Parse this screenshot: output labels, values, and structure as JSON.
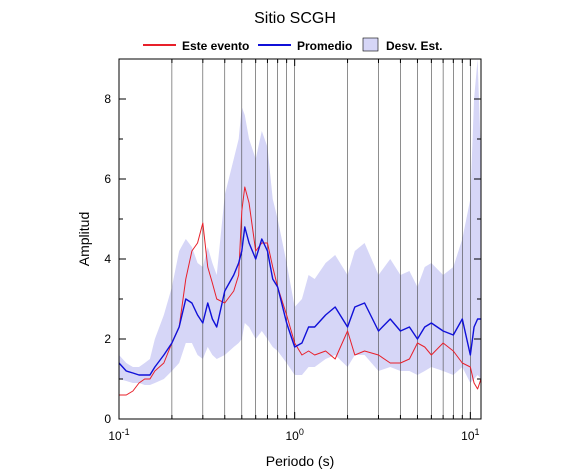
{
  "chart_data": {
    "type": "line",
    "title": "Sitio SCGH",
    "xlabel": "Periodo (s)",
    "ylabel": "Amplitud",
    "x_scale": "log",
    "xlim": [
      0.1,
      11.5
    ],
    "ylim": [
      0,
      9
    ],
    "x_ticks": [
      {
        "value": 0.1,
        "base": "10",
        "exp": "-1"
      },
      {
        "value": 1,
        "base": "10",
        "exp": "0"
      },
      {
        "value": 10,
        "base": "10",
        "exp": "1"
      }
    ],
    "y_ticks": [
      0,
      2,
      4,
      6,
      8
    ],
    "grid": "vertical minor/major gridlines on log x axis",
    "legend_position": "top",
    "legend": [
      {
        "label": "Este evento",
        "kind": "line",
        "color": "#e8202a"
      },
      {
        "label": "Promedio",
        "kind": "line",
        "color": "#1010d8"
      },
      {
        "label": "Desv. Est.",
        "kind": "band",
        "color": "#d6d6f7"
      }
    ],
    "series": [
      {
        "name": "Este evento",
        "color": "#e8202a",
        "x": [
          0.1,
          0.11,
          0.12,
          0.13,
          0.14,
          0.15,
          0.16,
          0.18,
          0.2,
          0.22,
          0.24,
          0.26,
          0.28,
          0.3,
          0.32,
          0.34,
          0.36,
          0.4,
          0.45,
          0.48,
          0.5,
          0.52,
          0.55,
          0.6,
          0.65,
          0.7,
          0.75,
          0.8,
          0.9,
          1.0,
          1.1,
          1.2,
          1.3,
          1.5,
          1.7,
          2.0,
          2.2,
          2.5,
          3.0,
          3.5,
          4.0,
          4.5,
          5.0,
          5.5,
          6.0,
          7.0,
          8.0,
          9.0,
          10.0,
          10.5,
          11.0,
          11.5
        ],
        "y": [
          0.6,
          0.6,
          0.7,
          0.9,
          1.0,
          1.0,
          1.2,
          1.4,
          1.9,
          2.3,
          3.5,
          4.2,
          4.4,
          4.9,
          3.8,
          3.4,
          3.0,
          2.9,
          3.2,
          3.6,
          5.2,
          5.8,
          5.4,
          4.2,
          4.4,
          4.4,
          3.8,
          3.3,
          2.6,
          1.9,
          1.6,
          1.7,
          1.6,
          1.7,
          1.5,
          2.2,
          1.6,
          1.7,
          1.6,
          1.4,
          1.4,
          1.5,
          1.9,
          1.8,
          1.6,
          1.9,
          1.7,
          1.4,
          1.3,
          0.9,
          0.75,
          1.0
        ]
      },
      {
        "name": "Promedio",
        "color": "#1010d8",
        "x": [
          0.1,
          0.11,
          0.12,
          0.13,
          0.14,
          0.15,
          0.16,
          0.18,
          0.2,
          0.22,
          0.24,
          0.26,
          0.28,
          0.3,
          0.32,
          0.34,
          0.36,
          0.4,
          0.45,
          0.48,
          0.5,
          0.52,
          0.55,
          0.6,
          0.65,
          0.7,
          0.75,
          0.8,
          0.9,
          1.0,
          1.1,
          1.2,
          1.3,
          1.5,
          1.7,
          2.0,
          2.2,
          2.5,
          3.0,
          3.5,
          4.0,
          4.5,
          5.0,
          5.5,
          6.0,
          7.0,
          8.0,
          9.0,
          10.0,
          10.5,
          11.0,
          11.5
        ],
        "y": [
          1.4,
          1.2,
          1.15,
          1.1,
          1.1,
          1.1,
          1.3,
          1.6,
          1.9,
          2.3,
          3.0,
          2.9,
          2.6,
          2.4,
          2.9,
          2.5,
          2.3,
          3.2,
          3.6,
          3.9,
          4.2,
          4.8,
          4.4,
          4.0,
          4.5,
          4.2,
          3.5,
          3.3,
          2.4,
          1.8,
          1.9,
          2.3,
          2.3,
          2.6,
          2.8,
          2.3,
          2.8,
          2.9,
          2.2,
          2.5,
          2.2,
          2.3,
          2.0,
          2.3,
          2.4,
          2.2,
          2.1,
          2.5,
          1.6,
          2.3,
          2.5,
          2.5
        ]
      }
    ],
    "band": {
      "name": "Desv. Est.",
      "color": "#d6d6f7",
      "x": [
        0.1,
        0.11,
        0.12,
        0.13,
        0.14,
        0.15,
        0.16,
        0.18,
        0.2,
        0.22,
        0.24,
        0.26,
        0.28,
        0.3,
        0.32,
        0.34,
        0.36,
        0.4,
        0.45,
        0.48,
        0.5,
        0.52,
        0.55,
        0.6,
        0.65,
        0.7,
        0.75,
        0.8,
        0.9,
        1.0,
        1.1,
        1.2,
        1.3,
        1.5,
        1.7,
        2.0,
        2.2,
        2.5,
        3.0,
        3.5,
        4.0,
        4.5,
        5.0,
        5.5,
        6.0,
        7.0,
        8.0,
        9.0,
        10.0,
        10.5,
        11.0,
        11.5
      ],
      "upper": [
        1.6,
        1.4,
        1.3,
        1.3,
        1.4,
        1.5,
        2.0,
        2.6,
        3.3,
        4.2,
        4.5,
        4.3,
        3.9,
        3.8,
        4.3,
        3.9,
        3.6,
        5.6,
        6.5,
        7.0,
        7.8,
        7.6,
        7.0,
        6.5,
        7.2,
        6.8,
        5.5,
        5.0,
        3.9,
        2.8,
        3.0,
        3.6,
        3.5,
        3.9,
        4.1,
        3.6,
        4.2,
        4.4,
        3.6,
        4.0,
        3.6,
        3.7,
        3.3,
        3.8,
        3.9,
        3.6,
        3.8,
        4.5,
        5.5,
        8.0,
        9.0,
        6.5
      ],
      "lower": [
        1.0,
        0.95,
        0.9,
        0.9,
        0.85,
        0.85,
        0.9,
        1.0,
        1.2,
        1.4,
        1.9,
        1.9,
        1.6,
        1.5,
        1.8,
        1.6,
        1.5,
        1.6,
        1.8,
        1.9,
        2.0,
        2.4,
        2.3,
        2.0,
        2.2,
        2.0,
        1.8,
        1.7,
        1.4,
        1.1,
        1.1,
        1.3,
        1.3,
        1.5,
        1.6,
        1.3,
        1.6,
        1.6,
        1.2,
        1.3,
        1.2,
        1.2,
        1.1,
        1.2,
        1.3,
        1.2,
        1.1,
        1.3,
        0.9,
        1.0,
        1.1,
        1.0
      ]
    }
  }
}
